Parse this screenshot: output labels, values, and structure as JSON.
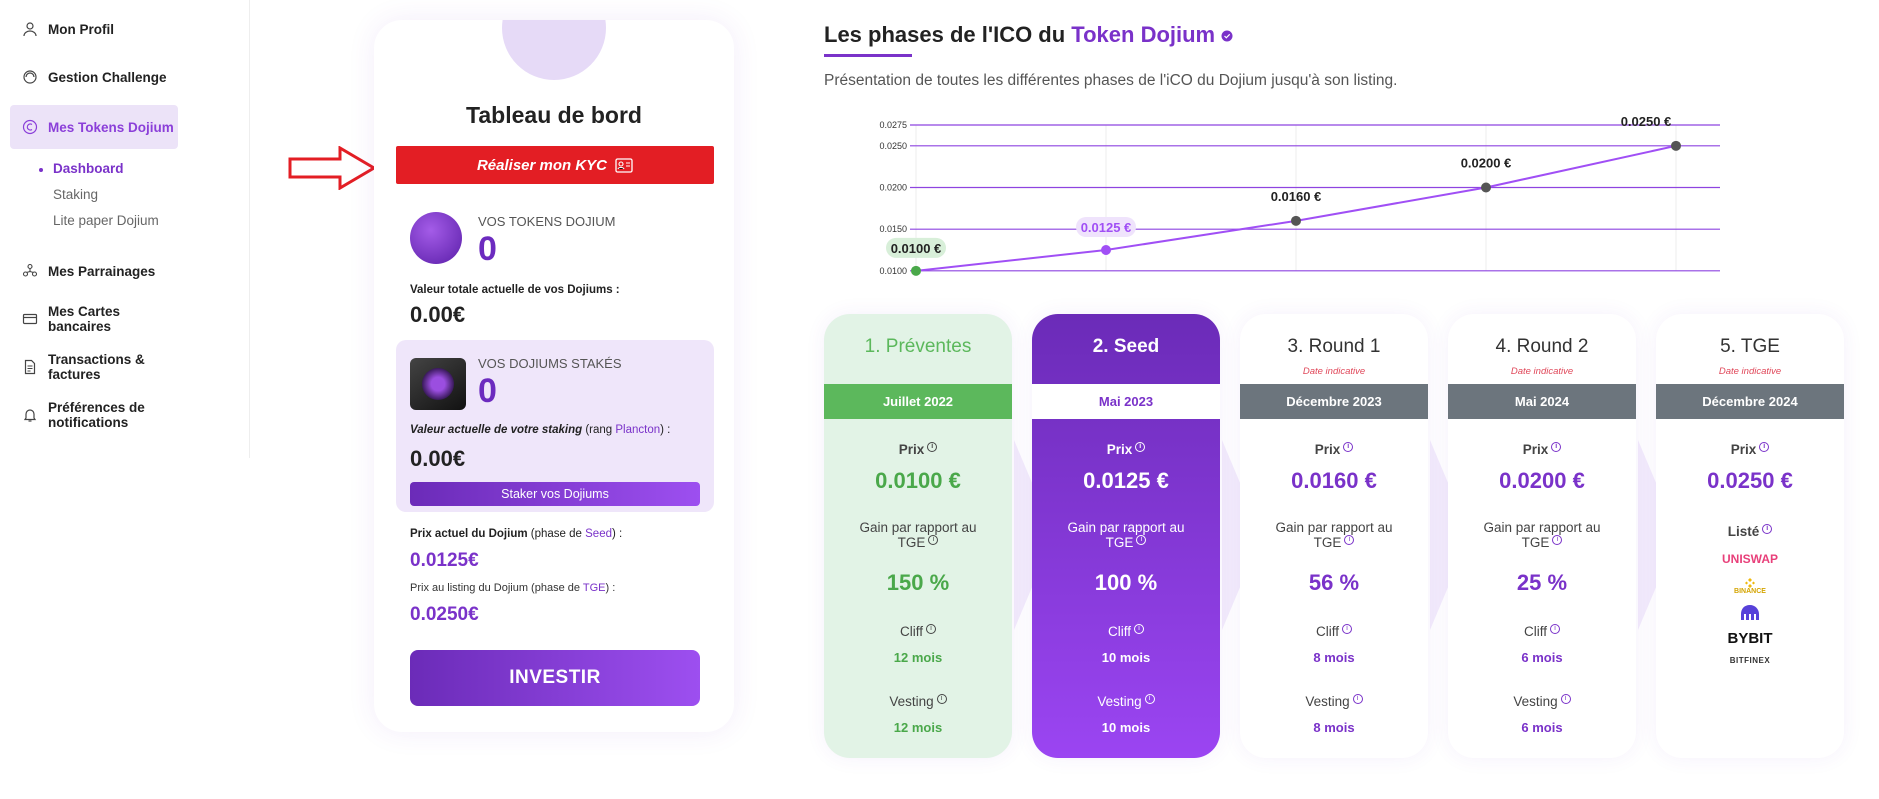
{
  "sidebar": {
    "items": [
      {
        "label": "Mon Profil",
        "icon": "user-icon"
      },
      {
        "label": "Gestion Challenge",
        "icon": "challenge-icon"
      },
      {
        "label": "Mes Tokens Dojium",
        "icon": "token-icon"
      },
      {
        "label": "Mes Parrainages",
        "icon": "referral-icon"
      },
      {
        "label": "Mes Cartes bancaires",
        "icon": "card-icon"
      },
      {
        "label": "Transactions & factures",
        "icon": "invoice-icon"
      },
      {
        "label": "Préférences de notifications",
        "icon": "bell-icon"
      }
    ],
    "sub_items": [
      {
        "label": "Dashboard"
      },
      {
        "label": "Staking"
      },
      {
        "label": "Lite paper Dojium"
      }
    ]
  },
  "dashboard": {
    "title": "Tableau de bord",
    "kyc_button": "Réaliser mon KYC",
    "tokens_label": "VOS TOKENS DOJIUM",
    "tokens_value": "0",
    "total_value_label": "Valeur totale actuelle de vos Dojiums :",
    "total_value": "0.00€",
    "staked_label": "VOS DOJIUMS STAKÉS",
    "staked_value": "0",
    "staking_value_label_a": "Valeur actuelle de votre staking",
    "staking_value_label_b": "(rang ",
    "staking_rank": "Plancton",
    "staking_value_label_c": ") :",
    "staking_value": "0.00€",
    "stake_button": "Staker vos Dojiums",
    "current_price_label_a": "Prix actuel du Dojium",
    "current_price_label_b": " (phase de ",
    "current_phase": "Seed",
    "current_price_label_c": ") :",
    "current_price": "0.0125€",
    "listing_price_label_a": "Prix au listing du Dojium (phase de ",
    "listing_phase": "TGE",
    "listing_price_label_c": ") :",
    "listing_price": "0.0250€",
    "invest_button": "INVESTIR"
  },
  "ico": {
    "title_a": "Les phases de l'ICO du ",
    "title_b": "Token Dojium",
    "description": "Présentation de toutes les différentes phases de l'iCO du Dojium jusqu'à son listing."
  },
  "chart_data": {
    "type": "line",
    "x": [
      1,
      2,
      3,
      4,
      5
    ],
    "values": [
      0.01,
      0.0125,
      0.016,
      0.02,
      0.025
    ],
    "data_labels": [
      "0.0100 €",
      "0.0125 €",
      "0.0160 €",
      "0.0200 €",
      "0.0250 €"
    ],
    "yticks": [
      "0.0275",
      "0.0250",
      "0.0200",
      "0.0150",
      "0.0100"
    ],
    "ytick_values": [
      0.0275,
      0.025,
      0.02,
      0.015,
      0.01
    ],
    "ylim": [
      0.0095,
      0.0275
    ],
    "line_color": "#a04ff5",
    "grid_color": "#8e44e0"
  },
  "phases": [
    {
      "title": "1. Préventes",
      "note": "",
      "date": "Juillet 2022",
      "prix_label": "Prix",
      "prix": "0.0100 €",
      "gain_label_1": "Gain par rapport au",
      "gain_label_2": "TGE",
      "gain": "150 %",
      "cliff_label": "Cliff",
      "cliff": "12 mois",
      "vesting_label": "Vesting",
      "vesting": "12 mois"
    },
    {
      "title": "2. Seed",
      "note": "",
      "date": "Mai 2023",
      "prix_label": "Prix",
      "prix": "0.0125 €",
      "gain_label_1": "Gain par rapport au",
      "gain_label_2": "TGE",
      "gain": "100 %",
      "cliff_label": "Cliff",
      "cliff": "10 mois",
      "vesting_label": "Vesting",
      "vesting": "10 mois"
    },
    {
      "title": "3. Round 1",
      "note": "Date indicative",
      "date": "Décembre 2023",
      "prix_label": "Prix",
      "prix": "0.0160 €",
      "gain_label_1": "Gain par rapport au",
      "gain_label_2": "TGE",
      "gain": "56 %",
      "cliff_label": "Cliff",
      "cliff": "8 mois",
      "vesting_label": "Vesting",
      "vesting": "8 mois"
    },
    {
      "title": "4. Round 2",
      "note": "Date indicative",
      "date": "Mai 2024",
      "prix_label": "Prix",
      "prix": "0.0200 €",
      "gain_label_1": "Gain par rapport au",
      "gain_label_2": "TGE",
      "gain": "25 %",
      "cliff_label": "Cliff",
      "cliff": "6 mois",
      "vesting_label": "Vesting",
      "vesting": "6 mois"
    },
    {
      "title": "5. TGE",
      "note": "Date indicative",
      "date": "Décembre 2024",
      "prix_label": "Prix",
      "prix": "0.0250 €",
      "listed_label": "Listé",
      "exchanges": [
        "UNISWAP",
        "BINANCE",
        "BYBIT",
        "BITFINEX"
      ]
    }
  ]
}
